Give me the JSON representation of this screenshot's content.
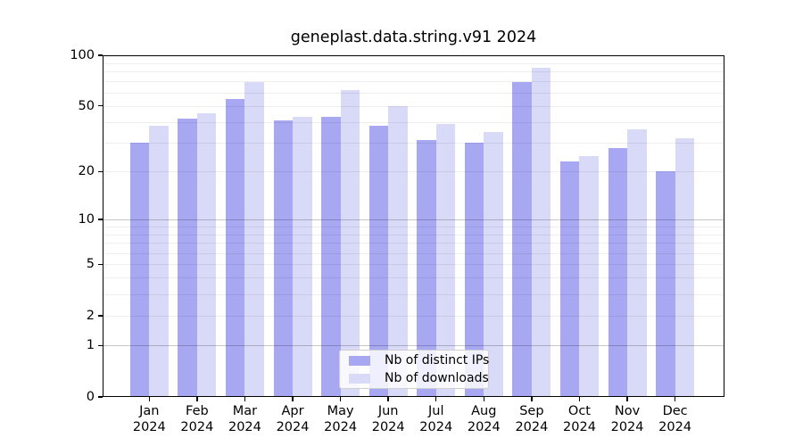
{
  "title": "geneplast.data.string.v91 2024",
  "legend": {
    "items": [
      {
        "label": "Nb of distinct IPs",
        "color": "#a7a7f2"
      },
      {
        "label": "Nb of downloads",
        "color": "#d9d9f8"
      }
    ],
    "position": "bottom-center"
  },
  "chart_data": {
    "type": "bar",
    "title": "geneplast.data.string.v91 2024",
    "yscale": "log1p",
    "ylim": [
      0,
      100
    ],
    "y_ticks": [
      0,
      1,
      2,
      5,
      10,
      20,
      50,
      100
    ],
    "grid": true,
    "grid_minor_values": [
      2,
      3,
      4,
      5,
      6,
      7,
      8,
      9,
      20,
      30,
      40,
      50,
      60,
      70,
      80,
      90
    ],
    "grid_major_values": [
      1,
      10
    ],
    "categories": [
      {
        "month": "Jan",
        "year": "2024"
      },
      {
        "month": "Feb",
        "year": "2024"
      },
      {
        "month": "Mar",
        "year": "2024"
      },
      {
        "month": "Apr",
        "year": "2024"
      },
      {
        "month": "May",
        "year": "2024"
      },
      {
        "month": "Jun",
        "year": "2024"
      },
      {
        "month": "Jul",
        "year": "2024"
      },
      {
        "month": "Aug",
        "year": "2024"
      },
      {
        "month": "Sep",
        "year": "2024"
      },
      {
        "month": "Oct",
        "year": "2024"
      },
      {
        "month": "Nov",
        "year": "2024"
      },
      {
        "month": "Dec",
        "year": "2024"
      }
    ],
    "series": [
      {
        "name": "Nb of distinct IPs",
        "color": "#a7a7f2",
        "values": [
          30,
          42,
          55,
          41,
          43,
          38,
          31,
          30,
          69,
          23,
          28,
          20
        ]
      },
      {
        "name": "Nb of downloads",
        "color": "#d9d9f8",
        "values": [
          38,
          45,
          69,
          43,
          62,
          50,
          39,
          35,
          84,
          25,
          36,
          32
        ]
      }
    ],
    "legend_position": "bottom-center"
  }
}
